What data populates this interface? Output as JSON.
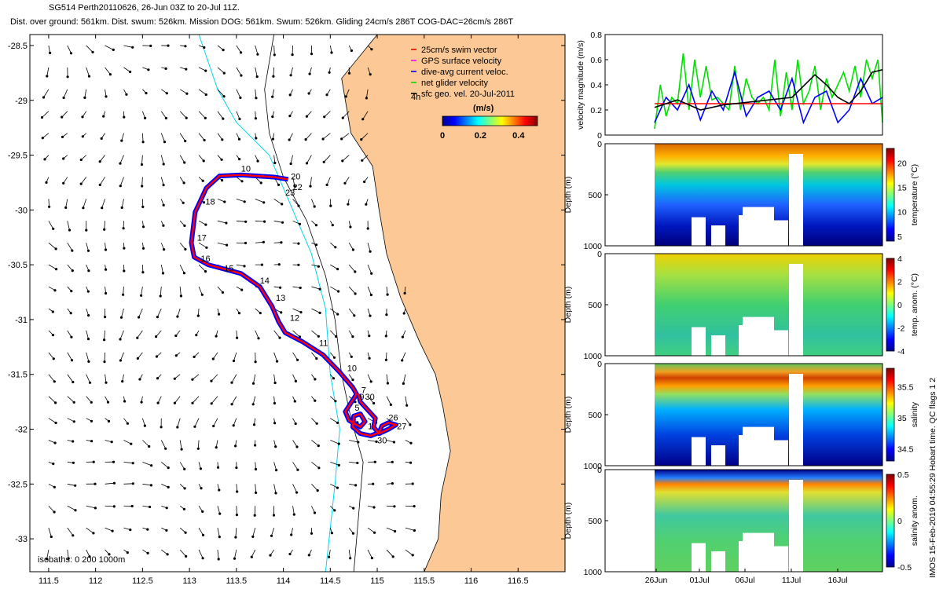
{
  "header": {
    "line1": "SG514 Perth20110626, 26-Jun 03Z to 20-Jul 11Z.",
    "line2": "Dist. over ground: 561km. Dist. swum: 526km. Mission DOG: 561km. Swum: 526km. Gliding 24cm/s 286T COG-DAC=26cm/s 286T"
  },
  "stamp": "IMOS 15-Feb-2019 04:55:29 Hobart time. QC flags 1  2",
  "colors": {
    "land": "#fcc895",
    "track_red": "#ff0000",
    "track_blue": "#0000ff",
    "net_green": "#00e000",
    "isobath_cyan": "#00d8e8",
    "vector_black": "#000000"
  },
  "chart_data": [
    {
      "type": "map",
      "id": "track-map",
      "xlim": [
        111.3,
        117.0
      ],
      "ylim": [
        -33.3,
        -28.4
      ],
      "x_ticks": [
        111.5,
        112,
        112.5,
        113,
        113.5,
        114,
        114.5,
        115,
        115.5,
        116,
        116.5
      ],
      "x_tick_labels": [
        "111.5",
        "112",
        "112.5",
        "113",
        "113.5",
        "114",
        "114.5",
        "115",
        "115.5",
        "116",
        "116.5"
      ],
      "y_ticks": [
        -28.5,
        -29,
        -29.5,
        -30,
        -30.5,
        -31,
        -31.5,
        -32,
        -32.5,
        -33
      ],
      "y_tick_labels": [
        "-28.5",
        "-29",
        "-29.5",
        "-30",
        "-30.5",
        "-31",
        "-31.5",
        "-32",
        "-32.5",
        "-33"
      ],
      "legend": [
        {
          "label": "25cm/s swim vector",
          "color": "#ff0000"
        },
        {
          "label": "GPS surface velocity",
          "color": "#ff00ff"
        },
        {
          "label": "dive-avg current veloc.",
          "color": "#0000ff"
        },
        {
          "label": "net glider velocity",
          "color": "#00e000"
        },
        {
          "label": "sfc geo. vel. 20-Jul-2011",
          "color": "#000000"
        }
      ],
      "colorbar": {
        "label": "(m/s)",
        "side_label": "4h",
        "range": [
          0,
          0.5
        ],
        "tick_values": [
          0,
          0.2,
          0.4
        ],
        "tick_labels": [
          "0",
          "0.2",
          "0.4"
        ]
      },
      "isobaths_label": "isobaths: 0   200  1000m",
      "track": [
        [
          114.05,
          -29.72
        ],
        [
          113.9,
          -29.7
        ],
        [
          113.55,
          -29.68
        ],
        [
          113.32,
          -29.69
        ],
        [
          113.18,
          -29.8
        ],
        [
          113.06,
          -30.02
        ],
        [
          113.02,
          -30.3
        ],
        [
          113.05,
          -30.43
        ],
        [
          113.2,
          -30.5
        ],
        [
          113.55,
          -30.58
        ],
        [
          113.75,
          -30.7
        ],
        [
          113.88,
          -30.88
        ],
        [
          113.95,
          -31.02
        ],
        [
          114.02,
          -31.12
        ],
        [
          114.2,
          -31.2
        ],
        [
          114.42,
          -31.32
        ],
        [
          114.6,
          -31.48
        ],
        [
          114.74,
          -31.62
        ],
        [
          114.78,
          -31.68
        ],
        [
          114.72,
          -31.76
        ],
        [
          114.66,
          -31.84
        ],
        [
          114.7,
          -31.92
        ],
        [
          114.82,
          -31.98
        ],
        [
          114.87,
          -31.93
        ],
        [
          114.82,
          -31.86
        ],
        [
          114.75,
          -31.88
        ],
        [
          114.74,
          -31.98
        ],
        [
          114.82,
          -32.04
        ],
        [
          114.93,
          -32.06
        ],
        [
          115.02,
          -32.03
        ],
        [
          115.05,
          -31.97
        ],
        [
          115.12,
          -31.94
        ],
        [
          115.2,
          -31.96
        ],
        [
          115.12,
          -32.0
        ],
        [
          115.02,
          -32.04
        ],
        [
          114.96,
          -31.98
        ],
        [
          114.98,
          -31.9
        ],
        [
          114.82,
          -31.75
        ],
        [
          114.8,
          -31.68
        ]
      ],
      "day_labels": [
        {
          "text": "10",
          "lon": 113.55,
          "lat": -29.65
        },
        {
          "text": "20",
          "lon": 114.08,
          "lat": -29.72
        },
        {
          "text": "22",
          "lon": 114.1,
          "lat": -29.82
        },
        {
          "text": "23",
          "lon": 114.02,
          "lat": -29.87
        },
        {
          "text": "18",
          "lon": 113.17,
          "lat": -29.95
        },
        {
          "text": "17",
          "lon": 113.08,
          "lat": -30.28
        },
        {
          "text": "16",
          "lon": 113.12,
          "lat": -30.47
        },
        {
          "text": "15",
          "lon": 113.37,
          "lat": -30.56
        },
        {
          "text": "14",
          "lon": 113.75,
          "lat": -30.67
        },
        {
          "text": "13",
          "lon": 113.92,
          "lat": -30.83
        },
        {
          "text": "12",
          "lon": 114.07,
          "lat": -31.01
        },
        {
          "text": "11",
          "lon": 114.38,
          "lat": -31.24
        },
        {
          "text": "10",
          "lon": 114.68,
          "lat": -31.47
        },
        {
          "text": "7",
          "lon": 114.83,
          "lat": -31.67
        },
        {
          "text": "9",
          "lon": 114.81,
          "lat": -31.73
        },
        {
          "text": "30",
          "lon": 114.87,
          "lat": -31.73
        },
        {
          "text": "5",
          "lon": 114.76,
          "lat": -31.83
        },
        {
          "text": "1",
          "lon": 114.9,
          "lat": -32.0
        },
        {
          "text": "26",
          "lon": 115.12,
          "lat": -31.92
        },
        {
          "text": "27",
          "lon": 115.21,
          "lat": -32.0
        },
        {
          "text": "30",
          "lon": 115.0,
          "lat": -32.13
        }
      ]
    },
    {
      "type": "line",
      "id": "velocity-panel",
      "ylabel": "velocity magnitude (m/s)",
      "xlim": [
        0,
        39.8
      ],
      "ylim": [
        0,
        0.8
      ],
      "y_ticks": [
        0,
        0.2,
        0.4,
        0.6,
        0.8
      ],
      "y_tick_labels": [
        "0",
        "0.2",
        "0.4",
        "0.6",
        "0.8"
      ],
      "series": [
        {
          "color": "#00e000",
          "x": [
            0,
            1,
            2,
            3,
            4,
            5,
            6,
            7,
            8,
            9,
            10,
            11,
            12,
            13,
            14,
            15,
            16,
            17,
            18,
            19,
            20,
            21,
            22,
            23,
            24,
            25,
            26,
            27,
            28,
            29,
            30,
            31,
            32,
            33,
            34,
            35,
            36,
            37,
            38,
            39,
            39.8
          ],
          "values": [
            0.05,
            0.4,
            0.15,
            0.3,
            0.25,
            0.65,
            0.2,
            0.6,
            0.3,
            0.55,
            0.28,
            0.3,
            0.25,
            0.2,
            0.55,
            0.2,
            0.45,
            0.3,
            0.25,
            0.3,
            0.2,
            0.6,
            0.15,
            0.5,
            0.2,
            0.6,
            0.25,
            0.35,
            0.55,
            0.2,
            0.45,
            0.3,
            0.4,
            0.5,
            0.35,
            0.55,
            0.3,
            0.6,
            0.45,
            0.6,
            0.1
          ]
        },
        {
          "color": "#0000ff",
          "x": [
            0,
            2,
            4,
            6,
            8,
            10,
            12,
            14,
            16,
            18,
            20,
            22,
            24,
            26,
            28,
            30,
            32,
            34,
            36,
            38,
            39.8
          ],
          "values": [
            0.1,
            0.3,
            0.2,
            0.4,
            0.12,
            0.35,
            0.2,
            0.5,
            0.15,
            0.3,
            0.35,
            0.2,
            0.45,
            0.1,
            0.3,
            0.35,
            0.1,
            0.2,
            0.45,
            0.25,
            0.3
          ]
        },
        {
          "color": "#ff0000",
          "x": [
            0,
            39.8
          ],
          "values": [
            0.25,
            0.25
          ]
        },
        {
          "color": "#000000",
          "x": [
            0,
            4,
            8,
            12,
            16,
            20,
            24,
            28,
            30,
            32,
            34,
            36,
            38,
            39.8
          ],
          "values": [
            0.22,
            0.28,
            0.2,
            0.24,
            0.26,
            0.28,
            0.3,
            0.48,
            0.4,
            0.3,
            0.25,
            0.35,
            0.5,
            0.52
          ]
        }
      ]
    },
    {
      "type": "heatmap",
      "id": "temperature-panel",
      "ylabel": "Depth (m)",
      "colorbar_label": "temperature (°C)",
      "range": [
        4,
        23
      ],
      "colorbar_ticks": [
        5,
        10,
        15,
        20
      ],
      "colorbar_tick_labels": [
        "5",
        "10",
        "15",
        "20"
      ],
      "y_ticks": [
        0,
        500,
        1000
      ],
      "y_tick_labels": [
        "0",
        "500",
        "1000"
      ]
    },
    {
      "type": "heatmap",
      "id": "temp-anomaly-panel",
      "ylabel": "Depth (m)",
      "colorbar_label": "temp. anom. (°C)",
      "range": [
        -4,
        4
      ],
      "colorbar_ticks": [
        -4,
        -2,
        0,
        2,
        4
      ],
      "colorbar_tick_labels": [
        "-4",
        "-2",
        "0",
        "2",
        "4"
      ],
      "y_ticks": [
        0,
        500,
        1000
      ],
      "y_tick_labels": [
        "0",
        "500",
        "1000"
      ]
    },
    {
      "type": "heatmap",
      "id": "salinity-panel",
      "ylabel": "Depth (m)",
      "colorbar_label": "salinity",
      "range": [
        34.3,
        35.8
      ],
      "colorbar_ticks": [
        34.5,
        35,
        35.5
      ],
      "colorbar_tick_labels": [
        "34.5",
        "35",
        "35.5"
      ],
      "y_ticks": [
        0,
        500,
        1000
      ],
      "y_tick_labels": [
        "0",
        "500",
        "1000"
      ]
    },
    {
      "type": "heatmap",
      "id": "salinity-anomaly-panel",
      "ylabel": "Depth (m)",
      "colorbar_label": "salinity anom.",
      "range": [
        -0.5,
        0.5
      ],
      "colorbar_ticks": [
        -0.5,
        0,
        0.5
      ],
      "colorbar_tick_labels": [
        "-0.5",
        "0",
        "0.5"
      ],
      "y_ticks": [
        0,
        500,
        1000
      ],
      "y_tick_labels": [
        "0",
        "500",
        "1000"
      ],
      "x_tick_labels": [
        "26Jun",
        "01Jul",
        "06Jul",
        "11Jul",
        "16Jul"
      ]
    }
  ]
}
